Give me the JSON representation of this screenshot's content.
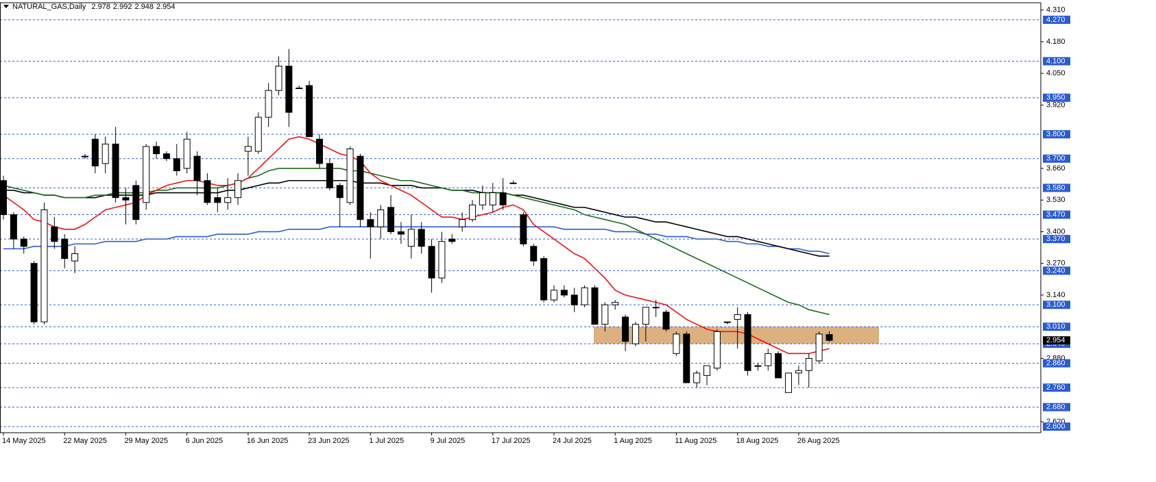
{
  "chart_data": {
    "type": "candlestick",
    "title": "NATURAL_GAS,Daily",
    "categories": [
      "14 May 2025",
      null,
      null,
      null,
      null,
      null,
      "22 May 2025",
      null,
      null,
      null,
      null,
      null,
      "29 May 2025",
      null,
      null,
      null,
      null,
      null,
      "6 Jun 2025",
      null,
      null,
      null,
      null,
      null,
      "16 Jun 2025",
      null,
      null,
      null,
      null,
      null,
      "23 Jun 2025",
      null,
      null,
      null,
      null,
      null,
      "1 Jul 2025",
      null,
      null,
      null,
      null,
      null,
      "9 Jul 2025",
      null,
      null,
      null,
      null,
      null,
      "17 Jul 2025",
      null,
      null,
      null,
      null,
      null,
      "24 Jul 2025",
      null,
      null,
      null,
      null,
      null,
      "1 Aug 2025",
      null,
      null,
      null,
      null,
      null,
      "11 Aug 2025",
      null,
      null,
      null,
      null,
      null,
      "18 Aug 2025",
      null,
      null,
      null,
      null,
      null,
      "26 Aug 2025",
      null,
      null,
      null
    ],
    "open": [
      3.61,
      3.47,
      3.37,
      3.27,
      3.03,
      3.42,
      3.37,
      3.28,
      3.71,
      3.78,
      3.68,
      3.76,
      3.54,
      3.59,
      3.52,
      3.75,
      3.72,
      3.7,
      3.66,
      3.71,
      3.61,
      3.54,
      3.52,
      3.54,
      3.73,
      3.73,
      3.87,
      3.98,
      4.08,
      3.99,
      4.0,
      3.78,
      3.68,
      3.59,
      3.52,
      3.71,
      3.45,
      3.42,
      3.5,
      3.4,
      3.34,
      3.41,
      3.34,
      3.21,
      3.37,
      3.42,
      3.45,
      3.51,
      3.51,
      3.56,
      3.6,
      3.47,
      3.34,
      3.29,
      3.12,
      3.16,
      3.14,
      3.1,
      3.17,
      3.02,
      3.1,
      3.05,
      2.94,
      3.02,
      3.09,
      3.07,
      2.9,
      2.98,
      2.78,
      2.81,
      2.84,
      3.03,
      3.04,
      3.06,
      2.85,
      2.85,
      2.9,
      2.74,
      2.82,
      2.83,
      2.87,
      2.978
    ],
    "high": [
      3.63,
      3.48,
      3.38,
      3.28,
      3.52,
      3.46,
      3.39,
      3.34,
      3.72,
      3.8,
      3.79,
      3.83,
      3.58,
      3.61,
      3.76,
      3.77,
      3.73,
      3.76,
      3.81,
      3.73,
      3.64,
      3.58,
      3.62,
      3.64,
      3.79,
      3.89,
      4.01,
      4.12,
      4.15,
      4.0,
      4.02,
      3.8,
      3.7,
      3.6,
      3.75,
      3.72,
      3.48,
      3.51,
      3.55,
      3.44,
      3.47,
      3.44,
      3.37,
      3.4,
      3.39,
      3.48,
      3.53,
      3.59,
      3.6,
      3.62,
      3.61,
      3.48,
      3.35,
      3.3,
      3.18,
      3.18,
      3.17,
      3.18,
      3.18,
      3.11,
      3.12,
      3.06,
      3.03,
      3.09,
      3.12,
      3.08,
      2.99,
      2.99,
      2.83,
      2.85,
      3.0,
      3.03,
      3.09,
      3.07,
      2.86,
      2.92,
      2.91,
      2.82,
      2.85,
      2.9,
      2.99,
      2.992
    ],
    "low": [
      3.45,
      3.33,
      3.31,
      3.02,
      3.02,
      3.33,
      3.25,
      3.23,
      3.7,
      3.64,
      3.64,
      3.52,
      3.43,
      3.43,
      3.49,
      3.7,
      3.69,
      3.63,
      3.64,
      3.55,
      3.51,
      3.48,
      3.49,
      3.51,
      3.63,
      3.72,
      3.83,
      3.96,
      3.83,
      3.99,
      3.79,
      3.66,
      3.57,
      3.42,
      3.51,
      3.42,
      3.29,
      3.37,
      3.39,
      3.35,
      3.29,
      3.31,
      3.15,
      3.19,
      3.35,
      3.4,
      3.44,
      3.49,
      3.48,
      3.49,
      3.6,
      3.34,
      3.26,
      3.11,
      3.11,
      3.13,
      3.07,
      3.09,
      3.02,
      2.99,
      3.08,
      2.91,
      2.93,
      2.95,
      3.05,
      2.99,
      2.89,
      2.78,
      2.76,
      2.77,
      2.83,
      3.02,
      2.92,
      2.81,
      2.83,
      2.83,
      2.8,
      2.74,
      2.77,
      2.76,
      2.86,
      2.948
    ],
    "close": [
      3.47,
      3.37,
      3.34,
      3.03,
      3.49,
      3.36,
      3.29,
      3.31,
      3.71,
      3.67,
      3.76,
      3.54,
      3.53,
      3.45,
      3.75,
      3.72,
      3.7,
      3.65,
      3.78,
      3.61,
      3.52,
      3.52,
      3.54,
      3.61,
      3.75,
      3.87,
      3.98,
      4.08,
      3.89,
      3.99,
      3.79,
      3.68,
      3.58,
      3.54,
      3.74,
      3.45,
      3.42,
      3.49,
      3.4,
      3.39,
      3.41,
      3.34,
      3.21,
      3.36,
      3.36,
      3.45,
      3.51,
      3.56,
      3.56,
      3.51,
      3.6,
      3.35,
      3.28,
      3.12,
      3.16,
      3.14,
      3.1,
      3.17,
      3.02,
      3.1,
      3.11,
      2.95,
      3.02,
      3.09,
      3.09,
      3.0,
      2.98,
      2.78,
      2.82,
      2.85,
      2.99,
      3.03,
      3.06,
      2.83,
      2.85,
      2.9,
      2.8,
      2.82,
      2.83,
      2.88,
      2.98,
      2.954
    ],
    "lines": [
      {
        "color": "#2a5bd7",
        "values": [
          3.33,
          3.33,
          3.33,
          3.34,
          3.34,
          3.34,
          3.34,
          3.35,
          3.35,
          3.35,
          3.36,
          3.36,
          3.36,
          3.36,
          3.37,
          3.37,
          3.37,
          3.38,
          3.38,
          3.38,
          3.38,
          3.39,
          3.39,
          3.39,
          3.39,
          3.4,
          3.4,
          3.4,
          3.41,
          3.41,
          3.41,
          3.41,
          3.42,
          3.42,
          3.42,
          3.42,
          3.42,
          3.42,
          3.42,
          3.42,
          3.42,
          3.42,
          3.42,
          3.42,
          3.42,
          3.42,
          3.42,
          3.42,
          3.42,
          3.42,
          3.42,
          3.42,
          3.42,
          3.42,
          3.42,
          3.41,
          3.41,
          3.41,
          3.41,
          3.41,
          3.4,
          3.4,
          3.4,
          3.39,
          3.39,
          3.38,
          3.38,
          3.38,
          3.37,
          3.37,
          3.37,
          3.36,
          3.36,
          3.35,
          3.35,
          3.34,
          3.34,
          3.33,
          3.33,
          3.32,
          3.32,
          3.31
        ]
      },
      {
        "color": "#000000",
        "values": [
          3.57,
          3.57,
          3.56,
          3.56,
          3.55,
          3.55,
          3.54,
          3.54,
          3.54,
          3.54,
          3.55,
          3.55,
          3.55,
          3.55,
          3.55,
          3.56,
          3.56,
          3.56,
          3.56,
          3.56,
          3.56,
          3.56,
          3.57,
          3.57,
          3.58,
          3.59,
          3.6,
          3.6,
          3.61,
          3.61,
          3.61,
          3.61,
          3.61,
          3.61,
          3.61,
          3.6,
          3.6,
          3.6,
          3.59,
          3.59,
          3.59,
          3.58,
          3.58,
          3.58,
          3.57,
          3.57,
          3.57,
          3.56,
          3.56,
          3.56,
          3.55,
          3.55,
          3.54,
          3.53,
          3.52,
          3.51,
          3.5,
          3.5,
          3.49,
          3.48,
          3.47,
          3.46,
          3.46,
          3.45,
          3.44,
          3.44,
          3.43,
          3.42,
          3.41,
          3.4,
          3.39,
          3.38,
          3.38,
          3.37,
          3.36,
          3.35,
          3.34,
          3.33,
          3.32,
          3.31,
          3.3,
          3.3
        ]
      },
      {
        "color": "#1a6b1a",
        "values": [
          3.59,
          3.58,
          3.57,
          3.56,
          3.55,
          3.55,
          3.54,
          3.54,
          3.54,
          3.55,
          3.55,
          3.56,
          3.56,
          3.56,
          3.56,
          3.57,
          3.57,
          3.58,
          3.58,
          3.58,
          3.58,
          3.58,
          3.59,
          3.6,
          3.62,
          3.63,
          3.65,
          3.66,
          3.66,
          3.66,
          3.66,
          3.66,
          3.66,
          3.66,
          3.65,
          3.65,
          3.64,
          3.63,
          3.62,
          3.61,
          3.61,
          3.6,
          3.59,
          3.58,
          3.57,
          3.57,
          3.56,
          3.56,
          3.56,
          3.56,
          3.55,
          3.54,
          3.53,
          3.52,
          3.51,
          3.5,
          3.49,
          3.47,
          3.46,
          3.45,
          3.44,
          3.43,
          3.41,
          3.39,
          3.37,
          3.35,
          3.33,
          3.31,
          3.29,
          3.27,
          3.25,
          3.23,
          3.21,
          3.19,
          3.17,
          3.15,
          3.13,
          3.11,
          3.1,
          3.08,
          3.07,
          3.06
        ]
      },
      {
        "color": "#ee1111",
        "values": [
          3.55,
          3.52,
          3.49,
          3.45,
          3.44,
          3.42,
          3.41,
          3.41,
          3.43,
          3.46,
          3.49,
          3.5,
          3.51,
          3.52,
          3.55,
          3.57,
          3.59,
          3.6,
          3.61,
          3.61,
          3.6,
          3.59,
          3.59,
          3.6,
          3.62,
          3.66,
          3.7,
          3.74,
          3.78,
          3.79,
          3.78,
          3.76,
          3.74,
          3.72,
          3.71,
          3.69,
          3.64,
          3.61,
          3.59,
          3.57,
          3.55,
          3.52,
          3.49,
          3.46,
          3.46,
          3.45,
          3.46,
          3.47,
          3.48,
          3.5,
          3.51,
          3.49,
          3.43,
          3.4,
          3.37,
          3.34,
          3.31,
          3.29,
          3.25,
          3.21,
          3.16,
          3.14,
          3.13,
          3.12,
          3.11,
          3.1,
          3.07,
          3.04,
          3.02,
          3.0,
          2.99,
          2.99,
          2.99,
          2.98,
          2.96,
          2.94,
          2.92,
          2.9,
          2.9,
          2.9,
          2.91,
          2.92
        ]
      }
    ],
    "zone": {
      "low": 2.94,
      "high": 3.01,
      "color": "#dcb07f"
    },
    "levels": [
      {
        "value": 4.27,
        "label": "4.270"
      },
      {
        "value": 4.1,
        "label": "4.100"
      },
      {
        "value": 3.95,
        "label": "3.950"
      },
      {
        "value": 3.8,
        "label": "3.800"
      },
      {
        "value": 3.7,
        "label": "3.700"
      },
      {
        "value": 3.58,
        "label": "3.580"
      },
      {
        "value": 3.47,
        "label": "3.470"
      },
      {
        "value": 3.37,
        "label": "3.370"
      },
      {
        "value": 3.24,
        "label": "3.240"
      },
      {
        "value": 3.1,
        "label": "3.100"
      },
      {
        "value": 3.01,
        "label": "3.010"
      },
      {
        "value": 2.94,
        "label": "2.940"
      },
      {
        "value": 2.86,
        "label": "2.860"
      },
      {
        "value": 2.76,
        "label": "2.760"
      },
      {
        "value": 2.68,
        "label": "2.680"
      },
      {
        "value": 2.6,
        "label": "2.600"
      }
    ],
    "level_color": "#2a5bd7",
    "ylim": [
      2.575,
      4.34
    ],
    "yticks": [
      {
        "value": 4.31,
        "label": "4.310"
      },
      {
        "value": 4.18,
        "label": "4.180"
      },
      {
        "value": 4.05,
        "label": "4.050"
      },
      {
        "value": 3.92,
        "label": "3.920"
      },
      {
        "value": 3.66,
        "label": "3.660"
      },
      {
        "value": 3.53,
        "label": "3.530"
      },
      {
        "value": 3.4,
        "label": "3.400"
      },
      {
        "value": 3.27,
        "label": "3.270"
      },
      {
        "value": 3.14,
        "label": "3.140"
      },
      {
        "value": 2.88,
        "label": "2.880"
      },
      {
        "value": 2.62,
        "label": "2.620"
      }
    ]
  }
}
